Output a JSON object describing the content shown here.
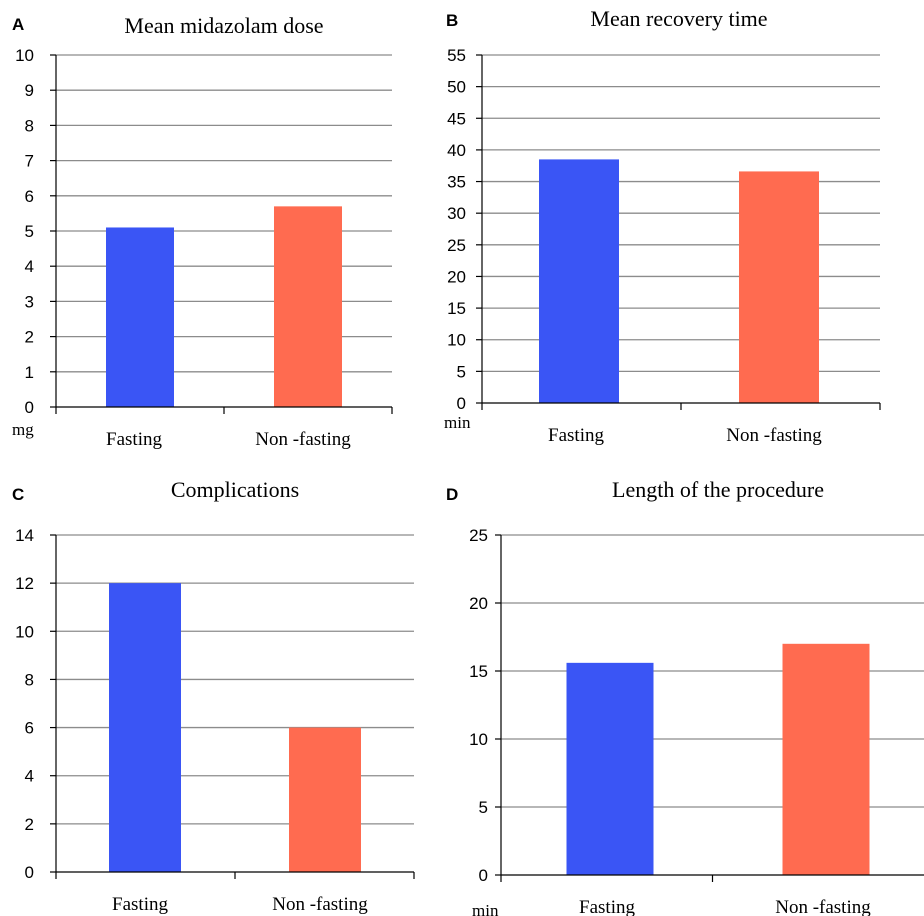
{
  "chart_data": [
    {
      "panel": "A",
      "type": "bar",
      "title": "Mean midazolam dose",
      "unit": "mg",
      "categories": [
        "Fasting",
        "Non -fasting"
      ],
      "values": [
        5.1,
        5.7
      ],
      "ylim": [
        0,
        10
      ],
      "ytick_step": 1,
      "grid": true,
      "colors": [
        "#3a55f5",
        "#ff6b50"
      ]
    },
    {
      "panel": "B",
      "type": "bar",
      "title": "Mean recovery time",
      "unit": "min",
      "categories": [
        "Fasting",
        "Non -fasting"
      ],
      "values": [
        38.5,
        36.6
      ],
      "ylim": [
        0,
        55
      ],
      "ytick_step": 5,
      "grid": true,
      "colors": [
        "#3a55f5",
        "#ff6b50"
      ]
    },
    {
      "panel": "C",
      "type": "bar",
      "title": "Complications",
      "unit": "",
      "categories": [
        "Fasting",
        "Non -fasting"
      ],
      "values": [
        12,
        6
      ],
      "ylim": [
        0,
        14
      ],
      "ytick_step": 2,
      "grid": true,
      "colors": [
        "#3a55f5",
        "#ff6b50"
      ]
    },
    {
      "panel": "D",
      "type": "bar",
      "title": "Length of the procedure",
      "unit": "min",
      "categories": [
        "Fasting",
        "Non -fasting"
      ],
      "values": [
        15.6,
        17
      ],
      "ylim": [
        0,
        25
      ],
      "ytick_step": 5,
      "grid": true,
      "colors": [
        "#3a55f5",
        "#ff6b50"
      ]
    }
  ]
}
